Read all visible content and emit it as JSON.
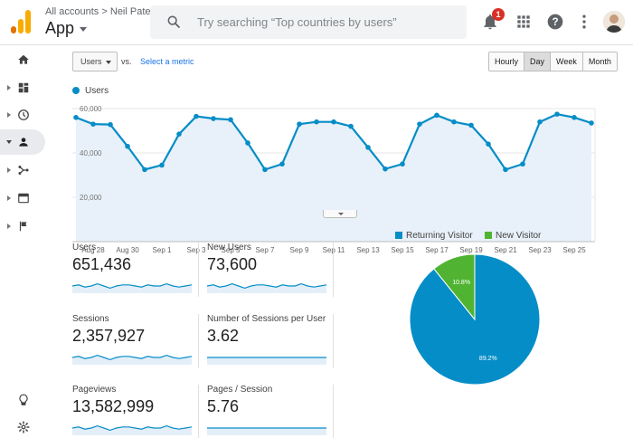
{
  "header": {
    "breadcrumb_root": "All accounts",
    "breadcrumb_sep": ">",
    "breadcrumb_account": "Neil Patel",
    "app_title": "App",
    "search_placeholder": "Try searching “Top countries by users”",
    "notification_count": "1",
    "icons": [
      "search-icon",
      "bell-icon",
      "apps-grid-icon",
      "help-icon",
      "more-vert-icon",
      "avatar"
    ]
  },
  "sidebar": {
    "items": [
      {
        "icon": "home-icon"
      },
      {
        "icon": "customization-icon"
      },
      {
        "icon": "realtime-clock-icon"
      },
      {
        "icon": "audience-person-icon",
        "active": true
      },
      {
        "icon": "acquisition-icon"
      },
      {
        "icon": "behavior-icon"
      },
      {
        "icon": "conversions-flag-icon"
      }
    ],
    "bottom": [
      {
        "icon": "discover-lightbulb-icon"
      },
      {
        "icon": "admin-gear-icon"
      }
    ]
  },
  "controls": {
    "metric": "Users",
    "vs": "vs.",
    "select_metric": "Select a metric",
    "time_buttons": [
      "Hourly",
      "Day",
      "Week",
      "Month"
    ],
    "selected_time": "Day"
  },
  "chart_data": {
    "type": "line",
    "series": [
      {
        "name": "Users",
        "values": [
          56000,
          53000,
          52800,
          43000,
          32500,
          34500,
          48500,
          56500,
          55500,
          55000,
          44500,
          32500,
          35000,
          53000,
          54000,
          54000,
          52000,
          42500,
          32800,
          35000,
          53000,
          57000,
          54000,
          52500,
          44000,
          32500,
          35000,
          54000,
          57500,
          56000,
          53500
        ]
      }
    ],
    "x_tick_labels": [
      "Aug 28",
      "Aug 30",
      "Sep 1",
      "Sep 3",
      "Sep 5",
      "Sep 7",
      "Sep 9",
      "Sep 11",
      "Sep 13",
      "Sep 15",
      "Sep 17",
      "Sep 19",
      "Sep 21",
      "Sep 23",
      "Sep 25"
    ],
    "y_tick_labels": [
      "20,000",
      "40,000",
      "60,000"
    ],
    "ylim": [
      0,
      60000
    ],
    "color": "#058dc7",
    "fill": "#e8f1f9"
  },
  "stats": [
    {
      "label": "Users",
      "value": "651,436",
      "spark": [
        5,
        6,
        4,
        5,
        7,
        5,
        3,
        5,
        6,
        6,
        5,
        4,
        6,
        5,
        5,
        7,
        5,
        4,
        5,
        6
      ]
    },
    {
      "label": "New Users",
      "value": "73,600",
      "spark": [
        5,
        6,
        4,
        5,
        7,
        5,
        3,
        5,
        6,
        6,
        5,
        4,
        6,
        5,
        5,
        7,
        5,
        4,
        5,
        6
      ]
    },
    {
      "label": "Sessions",
      "value": "2,357,927",
      "spark": [
        5,
        6,
        4,
        5,
        7,
        5,
        3,
        5,
        6,
        6,
        5,
        4,
        6,
        5,
        5,
        7,
        5,
        4,
        5,
        6
      ]
    },
    {
      "label": "Number of Sessions per User",
      "value": "3.62",
      "spark": [
        5,
        5,
        5,
        5,
        5,
        5,
        5,
        5,
        5,
        5,
        5,
        5,
        5,
        5,
        5,
        5,
        5,
        5,
        5,
        5
      ]
    },
    {
      "label": "Pageviews",
      "value": "13,582,999",
      "spark": [
        5,
        6,
        4,
        5,
        7,
        5,
        3,
        5,
        6,
        6,
        5,
        4,
        6,
        5,
        5,
        7,
        5,
        4,
        5,
        6
      ]
    },
    {
      "label": "Pages / Session",
      "value": "5.76",
      "spark": [
        5,
        5,
        5,
        5,
        5,
        5,
        5,
        5,
        5,
        5,
        5,
        5,
        5,
        5,
        5,
        5,
        5,
        5,
        5,
        5
      ]
    }
  ],
  "pie": {
    "legend": [
      {
        "label": "Returning Visitor",
        "color": "#058dc7"
      },
      {
        "label": "New Visitor",
        "color": "#50b432"
      }
    ],
    "values": [
      89.2,
      10.8
    ],
    "labels": [
      "89.2%",
      "10.8%"
    ]
  }
}
